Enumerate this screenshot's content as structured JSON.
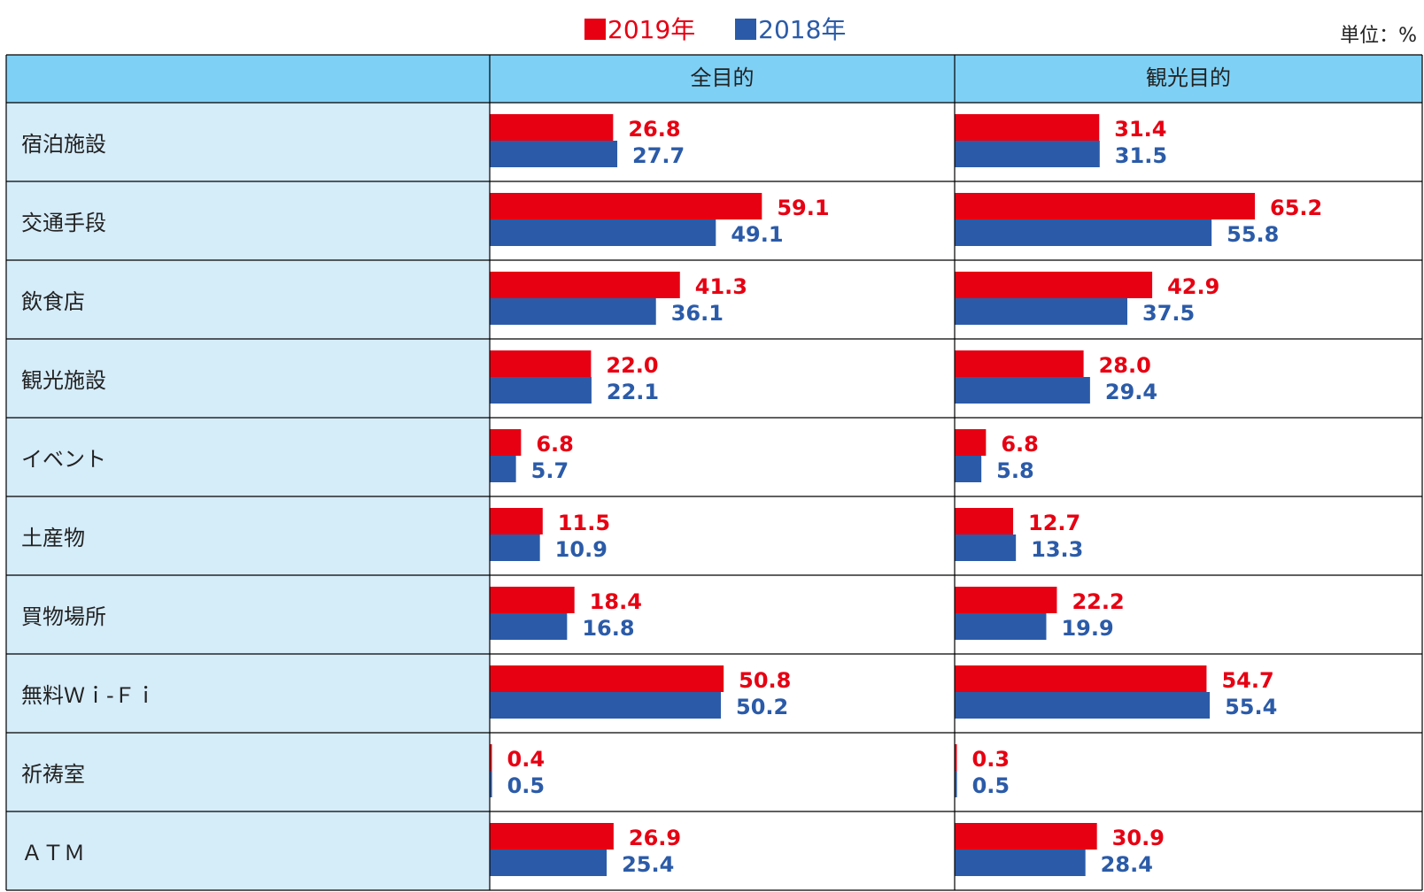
{
  "legend": {
    "s2019": "2019年",
    "s2018": "2018年"
  },
  "unit_label": "単位：%",
  "colors": {
    "s2019": "#e60012",
    "s2018": "#2b5ba8",
    "header_bg": "#7fd0f5",
    "label_bg": "#d5ecf9",
    "grid": "#000000"
  },
  "chart_data": {
    "type": "bar",
    "orientation": "horizontal",
    "columns": [
      "全目的",
      "観光目的"
    ],
    "categories": [
      "宿泊施設",
      "交通手段",
      "飲食店",
      "観光施設",
      "イベント",
      "土産物",
      "買物場所",
      "無料Ｗｉ-Ｆｉ",
      "祈祷室",
      "ＡＴＭ"
    ],
    "series": [
      {
        "name": "2019年",
        "values": {
          "全目的": [
            26.8,
            59.1,
            41.3,
            22.0,
            6.8,
            11.5,
            18.4,
            50.8,
            0.4,
            26.9
          ],
          "観光目的": [
            31.4,
            65.2,
            42.9,
            28.0,
            6.8,
            12.7,
            22.2,
            54.7,
            0.3,
            30.9
          ]
        }
      },
      {
        "name": "2018年",
        "values": {
          "全目的": [
            27.7,
            49.1,
            36.1,
            22.1,
            5.7,
            10.9,
            16.8,
            50.2,
            0.5,
            25.4
          ],
          "観光目的": [
            31.5,
            55.8,
            37.5,
            29.4,
            5.8,
            13.3,
            19.9,
            55.4,
            0.5,
            28.4
          ]
        }
      }
    ],
    "value_format": "one-decimal",
    "unit": "%"
  }
}
